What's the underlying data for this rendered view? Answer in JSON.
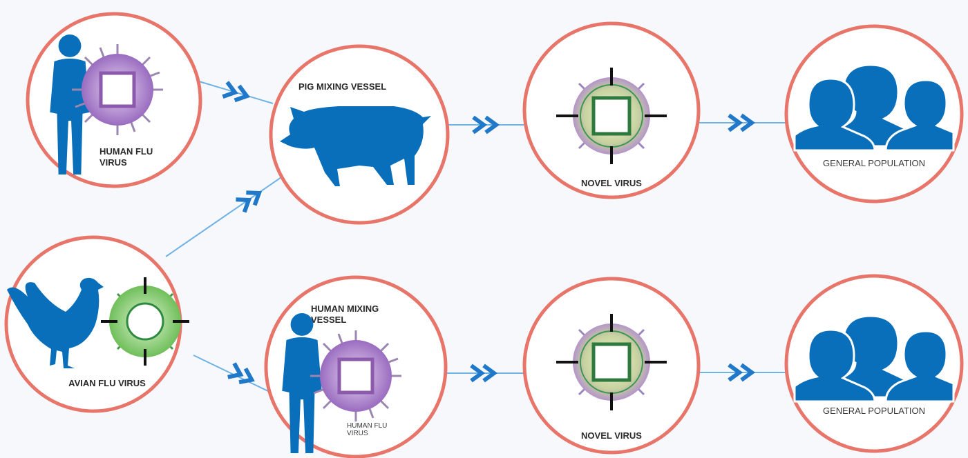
{
  "nodes": [
    {
      "label": "HUMAN FLU VIRUS"
    },
    {
      "label": "PIG MIXING VESSEL"
    },
    {
      "label": "NOVEL VIRUS"
    },
    {
      "label": "GENERAL POPULATION"
    },
    {
      "label": "AVIAN FLU VIRUS"
    },
    {
      "label": "HUMAN MIXING VESSEL"
    },
    {
      "label": "HUMAN FLU VIRUS"
    },
    {
      "label": "NOVEL VIRUS"
    },
    {
      "label": "GENERAL POPULATION"
    }
  ]
}
